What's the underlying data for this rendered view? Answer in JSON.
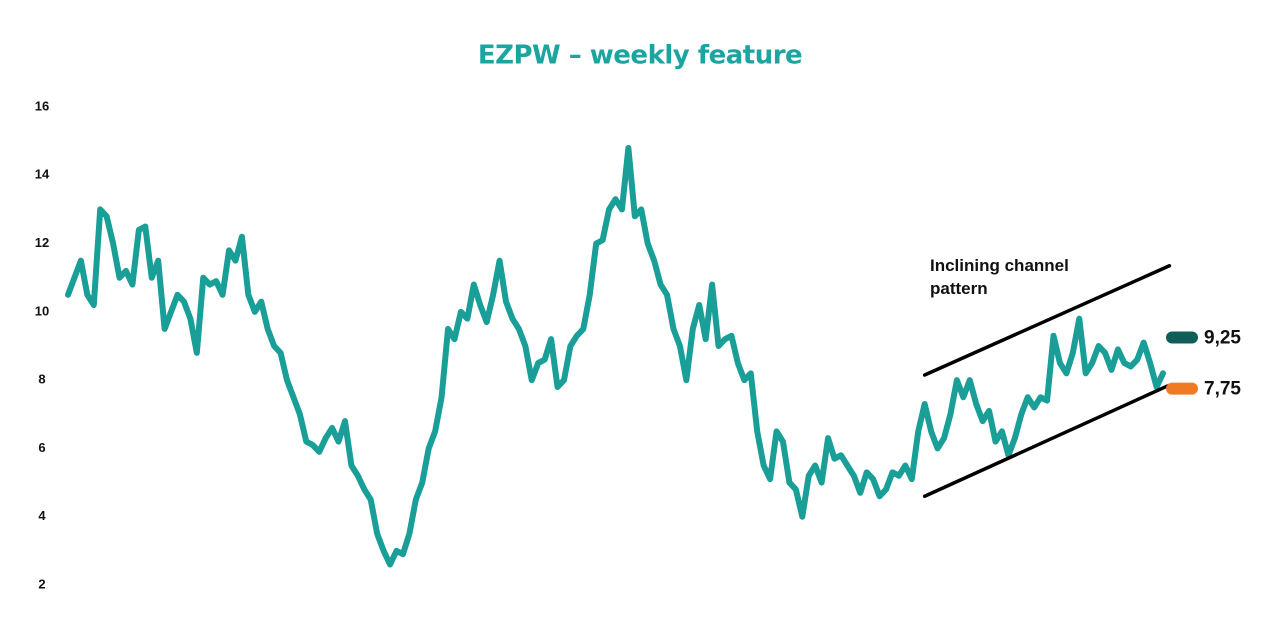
{
  "chart_data": {
    "type": "line",
    "title": "EZPW – weekly feature",
    "color": "#1a9e98",
    "values": [
      10.5,
      11,
      11.5,
      10.5,
      10.2,
      13,
      12.8,
      12,
      11,
      11.2,
      10.8,
      12.4,
      12.5,
      11,
      11.5,
      9.5,
      10,
      10.5,
      10.3,
      9.8,
      8.8,
      11,
      10.8,
      10.9,
      10.5,
      11.8,
      11.5,
      12.2,
      10.5,
      10,
      10.3,
      9.5,
      9,
      8.8,
      8,
      7.5,
      7,
      6.2,
      6.1,
      5.9,
      6.3,
      6.6,
      6.2,
      6.8,
      5.5,
      5.2,
      4.8,
      4.5,
      3.5,
      3,
      2.6,
      3,
      2.9,
      3.5,
      4.5,
      5,
      6,
      6.5,
      7.5,
      9.5,
      9.2,
      10,
      9.8,
      10.8,
      10.2,
      9.7,
      10.5,
      11.5,
      10.3,
      9.8,
      9.5,
      9,
      8,
      8.5,
      8.6,
      9.2,
      7.8,
      8,
      9,
      9.3,
      9.5,
      10.5,
      12,
      12.1,
      13,
      13.3,
      13,
      14.8,
      12.8,
      13,
      12,
      11.5,
      10.8,
      10.5,
      9.5,
      9,
      8,
      9.5,
      10.2,
      9.2,
      10.8,
      9,
      9.2,
      9.3,
      8.5,
      8,
      8.2,
      6.5,
      5.5,
      5.1,
      6.5,
      6.2,
      5,
      4.8,
      4,
      5.2,
      5.5,
      5,
      6.3,
      5.7,
      5.8,
      5.5,
      5.2,
      4.7,
      5.3,
      5.1,
      4.6,
      4.8,
      5.3,
      5.2,
      5.5,
      5.1,
      6.5,
      7.3,
      6.5,
      6,
      6.3,
      7,
      8,
      7.5,
      8,
      7.3,
      6.8,
      7.1,
      6.2,
      6.5,
      5.8,
      6.3,
      7,
      7.5,
      7.2,
      7.5,
      7.4,
      9.3,
      8.5,
      8.2,
      8.8,
      9.8,
      8.2,
      8.5,
      9,
      8.8,
      8.3,
      8.9,
      8.5,
      8.4,
      8.6,
      9.1,
      8.5,
      7.8,
      8.2
    ],
    "ylim": [
      2,
      16
    ],
    "yticks": [
      2,
      4,
      6,
      8,
      10,
      12,
      14,
      16
    ],
    "annotation": "Inclining channel pattern",
    "channel": [
      {
        "x": [
          133,
          171
        ],
        "y": [
          8.15,
          11.35
        ]
      },
      {
        "x": [
          133,
          170.7
        ],
        "y": [
          4.6,
          7.83
        ]
      }
    ],
    "channel_color": "#000000",
    "levels": [
      {
        "value": 9.25,
        "label": "9,25",
        "color": "#0f5e5a"
      },
      {
        "value": 7.75,
        "label": "7,75",
        "color": "#f07a22"
      }
    ]
  }
}
